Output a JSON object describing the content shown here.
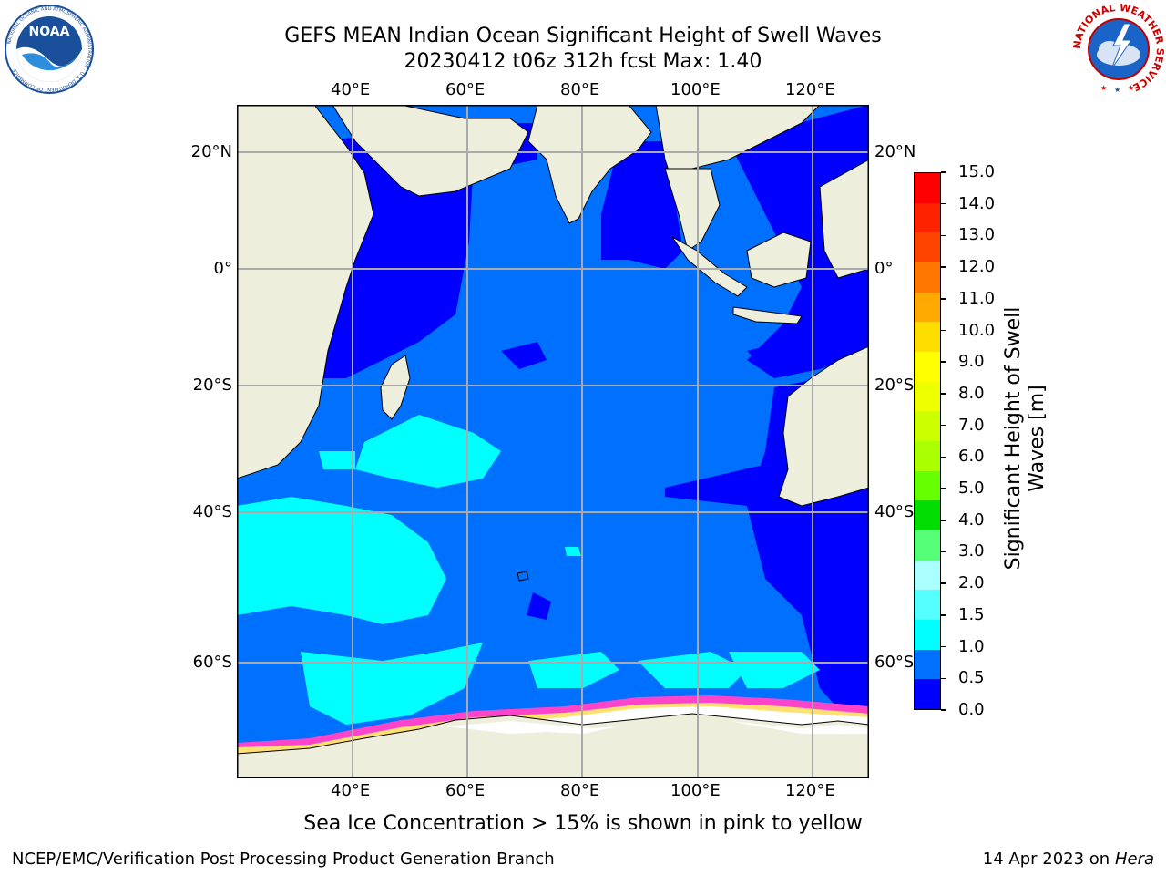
{
  "header": {
    "title_line1": "GEFS MEAN Indian Ocean Significant Height of Swell Waves",
    "title_line2": "20230412 t06z 312h fcst   Max: 1.40"
  },
  "logos": {
    "left_label": "NOAA",
    "left_ring_text": "NATIONAL OCEANIC AND ATMOSPHERIC ADMINISTRATION · U.S. DEPARTMENT OF COMMERCE",
    "right_ring_text": "NATIONAL WEATHER SERVICE"
  },
  "map": {
    "lon_labels": [
      "40°E",
      "60°E",
      "80°E",
      "100°E",
      "120°E"
    ],
    "lat_labels_left": [
      "20°N",
      "0°",
      "20°S",
      "40°S",
      "60°S"
    ],
    "lat_labels_right": [
      "20°N",
      "0°",
      "20°S",
      "40°S",
      "60°S"
    ],
    "colors": {
      "land": "#eeeedd",
      "ocean_main": "#0070ff",
      "ocean_low": "#0000ff",
      "swell_high": "#00ffff",
      "ice_edge_pink": "#ff44cc",
      "ice_edge_yellow": "#ffe070",
      "ice_white": "#ffffff",
      "grid": "#aaaaaa"
    }
  },
  "colorbar": {
    "label_line1": "Significant Height of Swell",
    "label_line2": "Waves [m]",
    "ticks": [
      "15.0",
      "14.0",
      "13.0",
      "12.0",
      "11.0",
      "10.0",
      "9.0",
      "8.0",
      "7.0",
      "6.0",
      "5.0",
      "4.0",
      "3.0",
      "2.0",
      "1.5",
      "1.0",
      "0.5",
      "0.0"
    ],
    "colors": [
      "#ff0000",
      "#ff2200",
      "#ff4400",
      "#ff7700",
      "#ffaa00",
      "#ffdd00",
      "#ffff00",
      "#eeff00",
      "#ccff00",
      "#aaff00",
      "#66ff00",
      "#00dd00",
      "#55ff77",
      "#aaffff",
      "#55ffff",
      "#00ffff",
      "#0070ff",
      "#0000ff"
    ]
  },
  "note": "Sea Ice Concentration > 15% is shown in pink to yellow",
  "footer": {
    "left": "NCEP/EMC/Verification Post Processing Product Generation Branch",
    "date": "14 Apr 2023 on ",
    "machine": "Hera"
  }
}
